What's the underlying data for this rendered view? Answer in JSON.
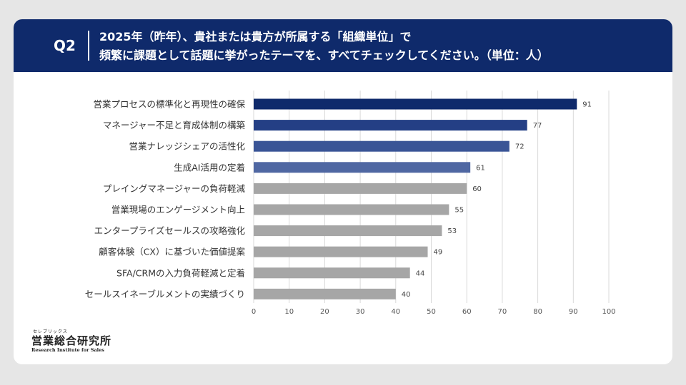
{
  "header": {
    "q_label": "Q2",
    "line1": "2025年（昨年）、貴社または貴方が所属する「組織単位」で",
    "line2": "頻繁に課題として話題に挙がったテーマを、すべてチェックしてください。（単位：人）"
  },
  "logo": {
    "ruby": "セレブリックス",
    "main": "営業総合研究所",
    "sub": "Research Institute for Sales"
  },
  "colors": {
    "header_bg": "#0f2a6b",
    "bar_top1": "#0f2a6b",
    "bar_top2": "#243f85",
    "bar_top3": "#3a5596",
    "bar_top4": "#4f67a2",
    "bar_rest": "#a6a6a6"
  },
  "chart_data": {
    "type": "bar",
    "orientation": "horizontal",
    "title": "",
    "xlabel": "",
    "ylabel": "",
    "xlim": [
      0,
      100
    ],
    "x_ticks": [
      0,
      10,
      20,
      30,
      40,
      50,
      60,
      70,
      80,
      90,
      100
    ],
    "grid": true,
    "legend": "none",
    "categories": [
      "営業プロセスの標準化と再現性の確保",
      "マネージャー不足と育成体制の構築",
      "営業ナレッジシェアの活性化",
      "生成AI活用の定着",
      "プレイングマネージャーの負荷軽減",
      "営業現場のエンゲージメント向上",
      "エンタープライズセールスの攻略強化",
      "顧客体験（CX）に基づいた価値提案",
      "SFA/CRMの入力負荷軽減と定着",
      "セールスイネーブルメントの実績づくり"
    ],
    "values": [
      91,
      77,
      72,
      61,
      60,
      55,
      53,
      49,
      44,
      40
    ]
  }
}
